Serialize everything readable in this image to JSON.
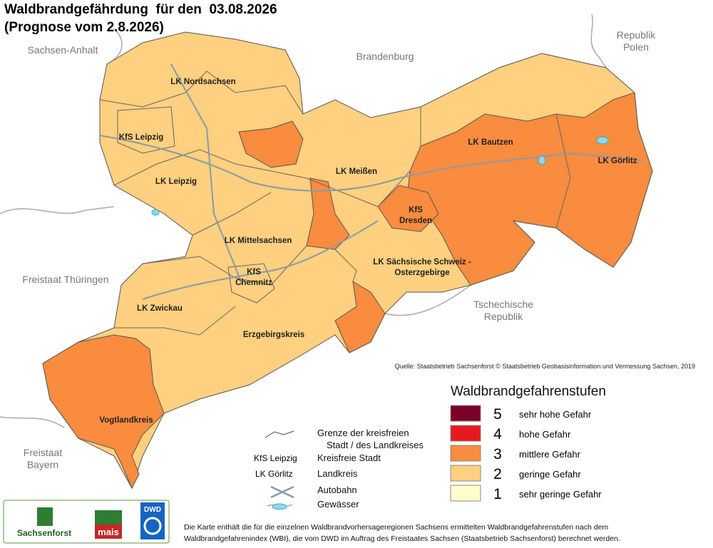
{
  "header": {
    "title": "Waldbrandgefährdung  für den  03.08.2026",
    "subtitle": "(Prognose vom 2.8.2026)"
  },
  "neighbors": [
    {
      "lines": [
        "Sachsen-Anhalt"
      ]
    },
    {
      "lines": [
        "Brandenburg"
      ]
    },
    {
      "lines": [
        "Republik",
        "Polen"
      ]
    },
    {
      "lines": [
        "Freistaat Thüringen"
      ]
    },
    {
      "lines": [
        "Tschechische",
        "Republik"
      ]
    },
    {
      "lines": [
        "Freistaat",
        "Bayern"
      ]
    }
  ],
  "regions": [
    {
      "lines": [
        "LK Nordsachsen"
      ]
    },
    {
      "lines": [
        "KfS Leipzig"
      ]
    },
    {
      "lines": [
        "LK Leipzig"
      ]
    },
    {
      "lines": [
        "LK Meißen"
      ]
    },
    {
      "lines": [
        "LK Bautzen"
      ]
    },
    {
      "lines": [
        "LK Görlitz"
      ]
    },
    {
      "lines": [
        "KfS",
        "Dresden"
      ]
    },
    {
      "lines": [
        "LK Mittelsachsen"
      ]
    },
    {
      "lines": [
        "LK Sächsische Schweiz -",
        "Osterzgebirge"
      ]
    },
    {
      "lines": [
        "KfS",
        "Chemnitz"
      ]
    },
    {
      "lines": [
        "LK Zwickau"
      ]
    },
    {
      "lines": [
        "Erzgebirgskreis"
      ]
    },
    {
      "lines": [
        "Vogtlandkreis"
      ]
    }
  ],
  "source": "Quelle: Staatsbetrieb Sachsenforst © Staatsbetrieb Geobasisinformation und Vermessung Sachsen, 2019",
  "legend": {
    "title": "Waldbrandgefahrenstufen",
    "items": [
      {
        "level": 5,
        "label": "sehr hohe Gefahr",
        "color": "#7b0025"
      },
      {
        "level": 4,
        "label": "hohe Gefahr",
        "color": "#e8191e"
      },
      {
        "level": 3,
        "label": "mittlere Gefahr",
        "color": "#f98c3e"
      },
      {
        "level": 2,
        "label": "geringe Gefahr",
        "color": "#fed07f"
      },
      {
        "level": 1,
        "label": "sehr geringe Gefahr",
        "color": "#ffffcc"
      }
    ]
  },
  "key": {
    "border": [
      "Grenze der kreisfreien",
      "Stadt / des Landkreises"
    ],
    "city_sample": "KfS Leipzig",
    "city": "Kreisfreie Stadt",
    "district_sample": "LK Görlitz",
    "district": "Landkreis",
    "motorway": "Autobahn",
    "water": "Gewässer"
  },
  "logos": {
    "sachsenforst": "Sachsenforst",
    "mais": "mais",
    "dwd": "DWD"
  },
  "footnote": [
    "Die Karte enthält die für die einzelnen Waldbrandvorhersageregionen Sachsens ermittelten Waldbrandgefahrenstufen nach dem",
    "Waldbrandgefahrenindex (WBI), die vom DWD im Auftrag des Freistaates Sachsen (Staatsbetrieb Sachsenforst) berechnet werden."
  ]
}
